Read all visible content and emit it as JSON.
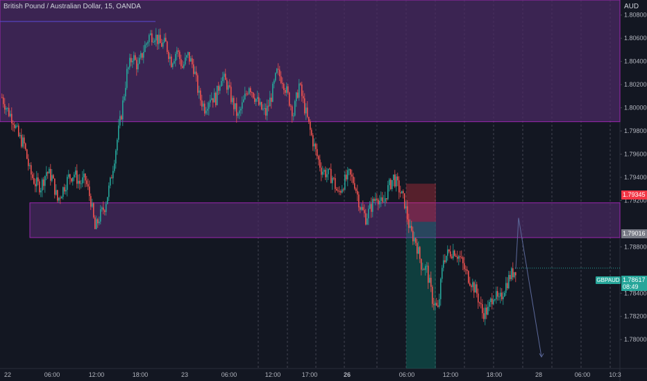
{
  "header": {
    "symbol_title": "British Pound / Australian Dollar, 15, OANDA"
  },
  "price_axis": {
    "currency": "AUD",
    "ticks": [
      "1.80800",
      "1.80600",
      "1.80400",
      "1.80200",
      "1.80000",
      "1.79800",
      "1.79600",
      "1.79400",
      "1.79200",
      "1.78800",
      "1.78400",
      "1.78200",
      "1.78000"
    ],
    "tick_values": [
      1.808,
      1.806,
      1.804,
      1.802,
      1.8,
      1.798,
      1.796,
      1.794,
      1.792,
      1.788,
      1.784,
      1.782,
      1.78
    ],
    "labels": {
      "stop_price": "1.79345",
      "entry_price": "1.79016",
      "last_price": "1.78617",
      "countdown": "08:49",
      "symbol": "GBPAUD"
    }
  },
  "time_axis": {
    "ticks": [
      "22",
      "06:00",
      "12:00",
      "18:00",
      "23",
      "06:00",
      "12:00",
      "17:00",
      "26",
      "06:00",
      "12:00",
      "18:00",
      "28",
      "06:00",
      "10:3"
    ],
    "bold_ticks": [
      "26"
    ]
  },
  "colors": {
    "background": "#131722",
    "up_candle": "#26a69a",
    "down_candle": "#ef5350",
    "zone_fill": "#4a2a63",
    "zone_border": "#9c27b0",
    "stop_zone": "#f23645",
    "target_zone": "#089981",
    "projection_line": "#5d6a9c"
  },
  "chart_data": {
    "type": "candlestick",
    "title": "British Pound / Australian Dollar, 15, OANDA",
    "ylabel": "AUD",
    "ylim": [
      1.7775,
      1.8093
    ],
    "supply_zone": [
      1.7988,
      1.8093
    ],
    "demand_zone": [
      1.7888,
      1.7918
    ],
    "trade": {
      "stop": 1.79345,
      "entry": 1.79016,
      "target": 1.7775
    },
    "last_price": 1.78617,
    "path_anchors": [
      [
        0,
        1.8009
      ],
      [
        4,
        1.7998
      ],
      [
        8,
        1.799
      ],
      [
        12,
        1.7975
      ],
      [
        16,
        1.7968
      ],
      [
        20,
        1.7945
      ],
      [
        24,
        1.7935
      ],
      [
        28,
        1.7932
      ],
      [
        32,
        1.7945
      ],
      [
        36,
        1.794
      ],
      [
        40,
        1.792
      ],
      [
        44,
        1.793
      ],
      [
        48,
        1.794
      ],
      [
        52,
        1.7943
      ],
      [
        56,
        1.7935
      ],
      [
        60,
        1.7938
      ],
      [
        64,
        1.792
      ],
      [
        67,
        1.7895
      ],
      [
        70,
        1.7905
      ],
      [
        74,
        1.7915
      ],
      [
        78,
        1.7935
      ],
      [
        82,
        1.7965
      ],
      [
        86,
        1.7995
      ],
      [
        90,
        1.803
      ],
      [
        94,
        1.8045
      ],
      [
        98,
        1.8035
      ],
      [
        102,
        1.805
      ],
      [
        106,
        1.8062
      ],
      [
        110,
        1.8063
      ],
      [
        114,
        1.8055
      ],
      [
        118,
        1.8055
      ],
      [
        122,
        1.804
      ],
      [
        126,
        1.805
      ],
      [
        130,
        1.8035
      ],
      [
        134,
        1.8045
      ],
      [
        138,
        1.8035
      ],
      [
        142,
        1.801
      ],
      [
        146,
        1.8
      ],
      [
        150,
        1.801
      ],
      [
        154,
        1.8008
      ],
      [
        158,
        1.8028
      ],
      [
        162,
        1.802
      ],
      [
        166,
        1.8005
      ],
      [
        170,
        1.7992
      ],
      [
        174,
        1.8005
      ],
      [
        178,
        1.802
      ],
      [
        182,
        1.801
      ],
      [
        186,
        1.8
      ],
      [
        190,
        1.7995
      ],
      [
        194,
        1.801
      ],
      [
        198,
        1.803
      ],
      [
        202,
        1.8025
      ],
      [
        206,
        1.801
      ],
      [
        210,
        1.7995
      ],
      [
        214,
        1.802
      ],
      [
        218,
        1.8
      ],
      [
        222,
        1.798
      ],
      [
        226,
        1.7962
      ],
      [
        230,
        1.7947
      ],
      [
        234,
        1.7943
      ],
      [
        238,
        1.794
      ],
      [
        242,
        1.7925
      ],
      [
        246,
        1.7935
      ],
      [
        250,
        1.7942
      ],
      [
        254,
        1.7935
      ],
      [
        258,
        1.7915
      ],
      [
        262,
        1.7905
      ],
      [
        266,
        1.7915
      ],
      [
        270,
        1.7925
      ],
      [
        274,
        1.7915
      ],
      [
        278,
        1.793
      ],
      [
        282,
        1.794
      ],
      [
        286,
        1.793
      ],
      [
        290,
        1.7918
      ],
      [
        294,
        1.7893
      ],
      [
        298,
        1.7885
      ],
      [
        302,
        1.7865
      ],
      [
        306,
        1.786
      ],
      [
        310,
        1.7835
      ],
      [
        314,
        1.7825
      ],
      [
        318,
        1.787
      ],
      [
        322,
        1.7875
      ],
      [
        326,
        1.7877
      ],
      [
        330,
        1.787
      ],
      [
        334,
        1.7858
      ],
      [
        338,
        1.785
      ],
      [
        342,
        1.784
      ],
      [
        346,
        1.7823
      ],
      [
        350,
        1.7825
      ],
      [
        354,
        1.784
      ],
      [
        358,
        1.7832
      ],
      [
        362,
        1.7845
      ],
      [
        366,
        1.7855
      ],
      [
        370,
        1.7861
      ]
    ],
    "projection": [
      [
        1.7861,
        0
      ],
      [
        1.7905,
        1
      ],
      [
        1.7785,
        2
      ]
    ]
  }
}
